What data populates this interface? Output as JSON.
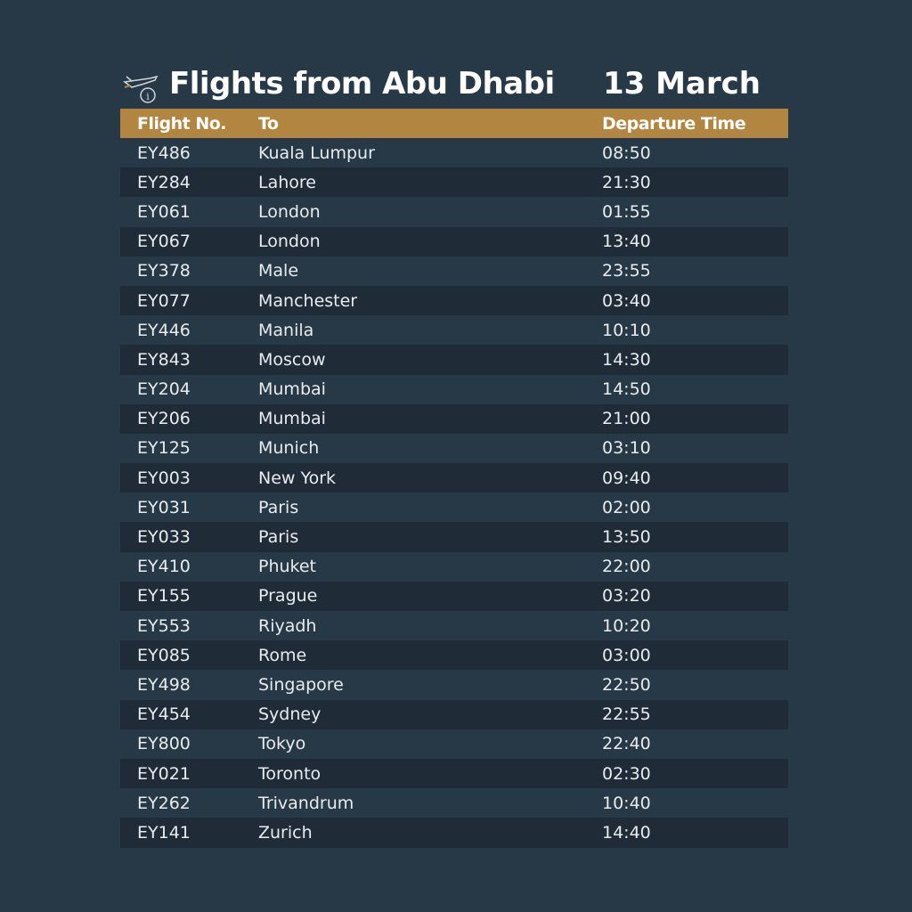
{
  "header": {
    "title": "Flights from Abu Dhabi",
    "date": "13 March",
    "icons": [
      "plane-departure-icon",
      "info-icon"
    ]
  },
  "colors": {
    "background": "#273846",
    "header_bar": "#b28641",
    "alt_row": "#1f2c38"
  },
  "table": {
    "columns": [
      "Flight No.",
      "To",
      "Departure Time"
    ],
    "rows": [
      [
        "EY486",
        "Kuala Lumpur",
        "08:50"
      ],
      [
        "EY284",
        "Lahore",
        "21:30"
      ],
      [
        "EY061",
        "London",
        "01:55"
      ],
      [
        "EY067",
        "London",
        "13:40"
      ],
      [
        "EY378",
        "Male",
        "23:55"
      ],
      [
        "EY077",
        "Manchester",
        "03:40"
      ],
      [
        "EY446",
        "Manila",
        "10:10"
      ],
      [
        "EY843",
        "Moscow",
        "14:30"
      ],
      [
        "EY204",
        "Mumbai",
        "14:50"
      ],
      [
        "EY206",
        "Mumbai",
        "21:00"
      ],
      [
        "EY125",
        "Munich",
        "03:10"
      ],
      [
        "EY003",
        "New York",
        "09:40"
      ],
      [
        "EY031",
        "Paris",
        "02:00"
      ],
      [
        "EY033",
        "Paris",
        "13:50"
      ],
      [
        "EY410",
        "Phuket",
        "22:00"
      ],
      [
        "EY155",
        "Prague",
        "03:20"
      ],
      [
        "EY553",
        "Riyadh",
        "10:20"
      ],
      [
        "EY085",
        "Rome",
        "03:00"
      ],
      [
        "EY498",
        "Singapore",
        "22:50"
      ],
      [
        "EY454",
        "Sydney",
        "22:55"
      ],
      [
        "EY800",
        "Tokyo",
        "22:40"
      ],
      [
        "EY021",
        "Toronto",
        "02:30"
      ],
      [
        "EY262",
        "Trivandrum",
        "10:40"
      ],
      [
        "EY141",
        "Zurich",
        "14:40"
      ]
    ]
  }
}
